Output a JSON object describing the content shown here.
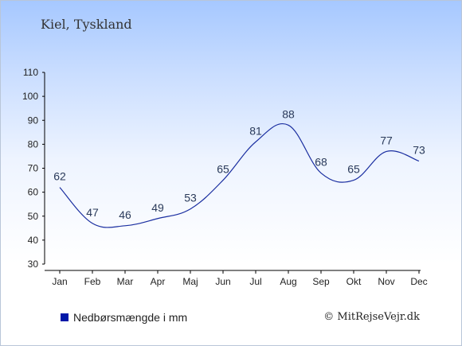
{
  "header": {
    "location": "Kiel, Tyskland"
  },
  "legend": {
    "label": "Nedbørsmængde i mm",
    "color": "#0018a8"
  },
  "credit": "© MitRejseVejr.dk",
  "chart_data": {
    "type": "line",
    "categories": [
      "Jan",
      "Feb",
      "Mar",
      "Apr",
      "Maj",
      "Jun",
      "Jul",
      "Aug",
      "Sep",
      "Okt",
      "Nov",
      "Dec"
    ],
    "series": [
      {
        "name": "Nedbørsmængde i mm",
        "values": [
          62,
          47,
          46,
          49,
          53,
          65,
          81,
          88,
          68,
          65,
          77,
          73
        ]
      }
    ],
    "y_ticks": [
      30,
      40,
      50,
      60,
      70,
      80,
      90,
      100,
      110
    ],
    "ylim": [
      30,
      110
    ],
    "line_color": "#1a2ea0",
    "grid": false
  }
}
